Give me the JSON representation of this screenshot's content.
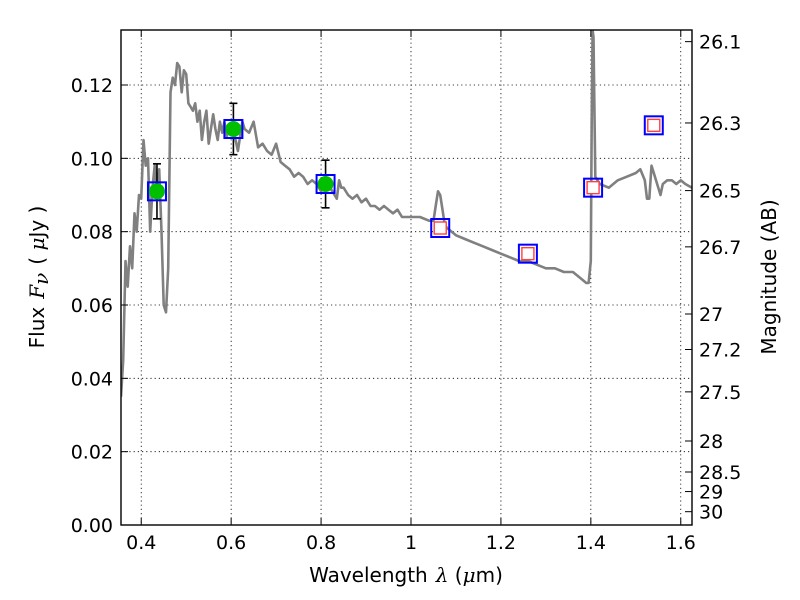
{
  "chart_data": {
    "type": "line",
    "xlabel": {
      "prefix": "Wavelength",
      "symbol": "λ",
      "unit_open": " (",
      "unit_mu": "μ",
      "unit_rest": "m)"
    },
    "ylabel": {
      "prefix": "Flux",
      "symbol": "F",
      "subscript": "ν",
      "unit_open": "( ",
      "unit_mu": "μ",
      "unit_rest": "Jy )"
    },
    "y2label": "Magnitude (AB)",
    "xlim": [
      0.355,
      1.625
    ],
    "ylim": [
      0.0,
      0.135
    ],
    "grid": true,
    "x_ticks": [
      {
        "value": 0.4,
        "label": "0.4"
      },
      {
        "value": 0.6,
        "label": "0.6"
      },
      {
        "value": 0.8,
        "label": "0.8"
      },
      {
        "value": 1.0,
        "label": "1"
      },
      {
        "value": 1.2,
        "label": "1.2"
      },
      {
        "value": 1.4,
        "label": "1.4"
      },
      {
        "value": 1.6,
        "label": "1.6"
      }
    ],
    "y_ticks": [
      {
        "value": 0.0,
        "label": "0.00"
      },
      {
        "value": 0.02,
        "label": "0.02"
      },
      {
        "value": 0.04,
        "label": "0.04"
      },
      {
        "value": 0.06,
        "label": "0.06"
      },
      {
        "value": 0.08,
        "label": "0.08"
      },
      {
        "value": 0.1,
        "label": "0.10"
      },
      {
        "value": 0.12,
        "label": "0.12"
      }
    ],
    "y2_ticks": [
      {
        "value": 26.1,
        "label": "26.1"
      },
      {
        "value": 26.3,
        "label": "26.3"
      },
      {
        "value": 26.5,
        "label": "26.5"
      },
      {
        "value": 26.7,
        "label": "26.7"
      },
      {
        "value": 27.0,
        "label": "27"
      },
      {
        "value": 27.2,
        "label": "27.2"
      },
      {
        "value": 27.5,
        "label": "27.5"
      },
      {
        "value": 28.0,
        "label": "28"
      },
      {
        "value": 28.5,
        "label": "28.5"
      },
      {
        "value": 29.0,
        "label": "29"
      },
      {
        "value": 30.0,
        "label": "30"
      }
    ],
    "series": [
      {
        "kind": "model_spectrum",
        "color": "#808080",
        "x": [
          0.355,
          0.36,
          0.365,
          0.37,
          0.375,
          0.38,
          0.385,
          0.39,
          0.395,
          0.4,
          0.405,
          0.41,
          0.415,
          0.42,
          0.425,
          0.43,
          0.435,
          0.44,
          0.445,
          0.45,
          0.455,
          0.46,
          0.465,
          0.47,
          0.475,
          0.48,
          0.485,
          0.49,
          0.495,
          0.5,
          0.505,
          0.51,
          0.515,
          0.52,
          0.525,
          0.53,
          0.535,
          0.54,
          0.545,
          0.55,
          0.555,
          0.56,
          0.565,
          0.57,
          0.575,
          0.58,
          0.585,
          0.59,
          0.595,
          0.6,
          0.605,
          0.61,
          0.615,
          0.62,
          0.625,
          0.63,
          0.64,
          0.65,
          0.66,
          0.67,
          0.68,
          0.69,
          0.7,
          0.71,
          0.72,
          0.73,
          0.74,
          0.75,
          0.76,
          0.77,
          0.78,
          0.79,
          0.8,
          0.81,
          0.82,
          0.83,
          0.835,
          0.84,
          0.845,
          0.85,
          0.86,
          0.87,
          0.88,
          0.89,
          0.9,
          0.91,
          0.92,
          0.93,
          0.94,
          0.95,
          0.96,
          0.97,
          0.98,
          1.0,
          1.02,
          1.04,
          1.05,
          1.055,
          1.06,
          1.065,
          1.07,
          1.075,
          1.08,
          1.1,
          1.12,
          1.14,
          1.16,
          1.18,
          1.2,
          1.22,
          1.24,
          1.26,
          1.28,
          1.3,
          1.32,
          1.34,
          1.36,
          1.38,
          1.39,
          1.395,
          1.4,
          1.402,
          1.404,
          1.406,
          1.41,
          1.42,
          1.44,
          1.46,
          1.48,
          1.5,
          1.51,
          1.52,
          1.525,
          1.53,
          1.535,
          1.54,
          1.545,
          1.55,
          1.555,
          1.56,
          1.57,
          1.58,
          1.59,
          1.6,
          1.61,
          1.625
        ],
        "y": [
          0.035,
          0.045,
          0.072,
          0.065,
          0.076,
          0.07,
          0.085,
          0.08,
          0.09,
          0.089,
          0.105,
          0.098,
          0.1,
          0.08,
          0.092,
          0.098,
          0.09,
          0.097,
          0.08,
          0.06,
          0.058,
          0.07,
          0.118,
          0.122,
          0.12,
          0.126,
          0.125,
          0.118,
          0.124,
          0.123,
          0.115,
          0.114,
          0.113,
          0.115,
          0.11,
          0.113,
          0.105,
          0.11,
          0.113,
          0.104,
          0.108,
          0.112,
          0.108,
          0.105,
          0.11,
          0.107,
          0.11,
          0.106,
          0.109,
          0.107,
          0.108,
          0.105,
          0.102,
          0.106,
          0.11,
          0.108,
          0.107,
          0.11,
          0.103,
          0.104,
          0.102,
          0.101,
          0.104,
          0.099,
          0.098,
          0.097,
          0.095,
          0.096,
          0.095,
          0.093,
          0.094,
          0.093,
          0.091,
          0.093,
          0.092,
          0.09,
          0.089,
          0.094,
          0.092,
          0.092,
          0.09,
          0.089,
          0.09,
          0.088,
          0.089,
          0.087,
          0.087,
          0.086,
          0.087,
          0.086,
          0.085,
          0.086,
          0.084,
          0.084,
          0.084,
          0.083,
          0.083,
          0.087,
          0.091,
          0.09,
          0.086,
          0.082,
          0.081,
          0.079,
          0.078,
          0.077,
          0.076,
          0.075,
          0.074,
          0.073,
          0.072,
          0.072,
          0.071,
          0.07,
          0.07,
          0.069,
          0.069,
          0.067,
          0.066,
          0.066,
          0.072,
          0.11,
          0.135,
          0.133,
          0.095,
          0.093,
          0.092,
          0.094,
          0.095,
          0.096,
          0.097,
          0.094,
          0.089,
          0.089,
          0.098,
          0.096,
          0.094,
          0.092,
          0.09,
          0.093,
          0.094,
          0.094,
          0.093,
          0.094,
          0.093,
          0.092
        ]
      },
      {
        "kind": "observed",
        "marker": "circle",
        "color": "#00bf00",
        "x": [
          0.435,
          0.605,
          0.81
        ],
        "y": [
          0.091,
          0.108,
          0.093
        ],
        "yerr": [
          0.0075,
          0.007,
          0.0065
        ]
      },
      {
        "kind": "model_band",
        "marker": "square",
        "color": "#0000ff",
        "x": [
          0.435,
          0.605,
          0.81,
          1.065,
          1.26,
          1.405,
          1.54
        ],
        "y": [
          0.091,
          0.108,
          0.093,
          0.081,
          0.074,
          0.092,
          0.109
        ]
      },
      {
        "kind": "upper_limit",
        "marker": "square",
        "color": "#ff4040",
        "x": [
          1.065,
          1.26,
          1.405,
          1.54
        ],
        "y": [
          0.081,
          0.074,
          0.092,
          0.109
        ]
      }
    ]
  }
}
